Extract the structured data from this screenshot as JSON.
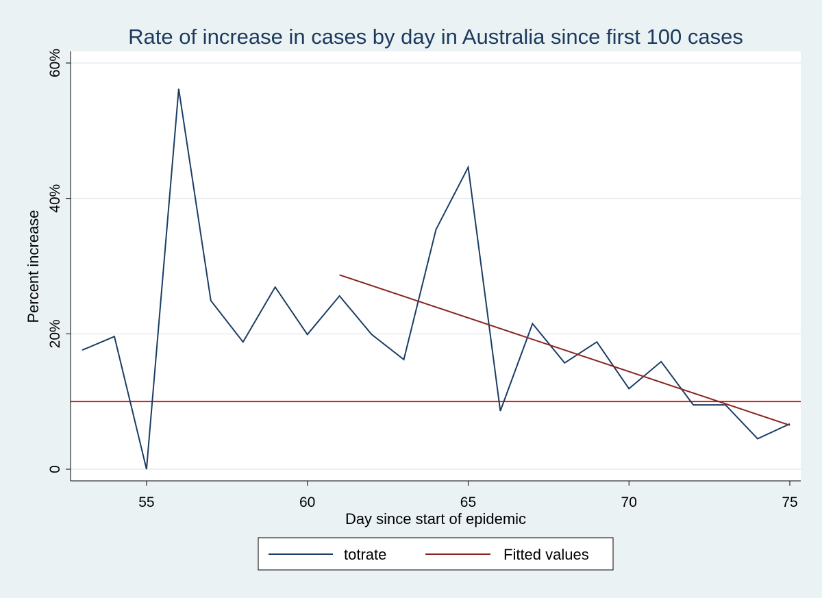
{
  "chart_data": {
    "type": "line",
    "title": "Rate of increase in cases by day in Australia since first 100 cases",
    "xlabel": "Day since start of epidemic",
    "ylabel": "Percent increase",
    "xlim": [
      53,
      75
    ],
    "ylim": [
      0,
      60
    ],
    "x_ticks": [
      55,
      60,
      65,
      70,
      75
    ],
    "x_tick_labels": [
      "55",
      "60",
      "65",
      "70",
      "75"
    ],
    "y_ticks": [
      0,
      20,
      40,
      60
    ],
    "y_tick_labels": [
      "0",
      "20%",
      "40%",
      "60%"
    ],
    "grid": true,
    "legend_position": "bottom",
    "series": [
      {
        "name": "totrate",
        "color": "#1a3d63",
        "x": [
          53,
          54,
          55,
          56,
          57,
          58,
          59,
          60,
          61,
          62,
          63,
          64,
          65,
          66,
          67,
          68,
          69,
          70,
          71,
          72,
          73,
          74,
          75
        ],
        "values": [
          17.6,
          19.6,
          0,
          56.2,
          24.9,
          18.8,
          26.9,
          19.9,
          25.6,
          19.9,
          16.2,
          35.4,
          44.6,
          8.6,
          21.5,
          15.7,
          18.8,
          11.9,
          15.9,
          9.5,
          9.5,
          4.5,
          6.7
        ]
      },
      {
        "name": "Fitted values",
        "color": "#8b2323",
        "x": [
          61,
          75
        ],
        "values": [
          28.7,
          6.5
        ]
      }
    ],
    "reference_line": {
      "y": 10,
      "color": "#cc1f1f"
    }
  }
}
